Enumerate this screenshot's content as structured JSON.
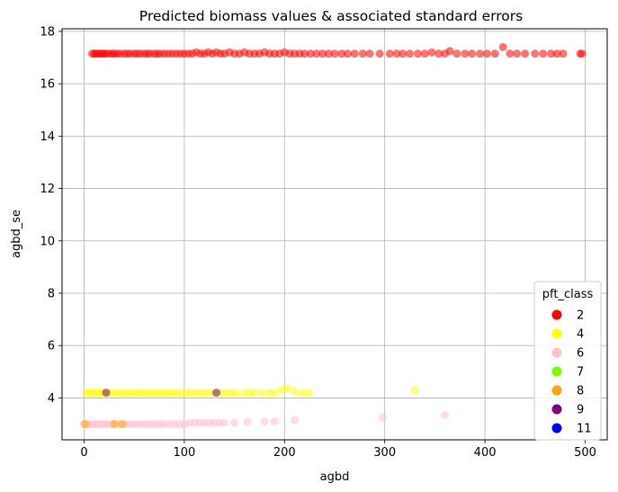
{
  "chart_data": {
    "type": "scatter",
    "title": "Predicted biomass values & associated standard errors",
    "xlabel": "agbd",
    "ylabel": "agbd_se",
    "xlim": [
      -22,
      522
    ],
    "ylim": [
      2.4,
      18.1
    ],
    "xticks": [
      0,
      100,
      200,
      300,
      400,
      500
    ],
    "yticks": [
      4,
      6,
      8,
      10,
      12,
      14,
      16,
      18
    ],
    "grid": true,
    "legend": {
      "title": "pft_class",
      "placement": "lower right",
      "entries": [
        {
          "label": "2",
          "color": "#ff0000"
        },
        {
          "label": "4",
          "color": "#ffff00"
        },
        {
          "label": "6",
          "color": "#ffc0cb"
        },
        {
          "label": "7",
          "color": "#7cfc00"
        },
        {
          "label": "8",
          "color": "#ffa500"
        },
        {
          "label": "9",
          "color": "#800080"
        },
        {
          "label": "11",
          "color": "#0000ff"
        }
      ]
    },
    "series": [
      {
        "name": "2",
        "color": "#ff0000",
        "points": [
          [
            8,
            17.15
          ],
          [
            10,
            17.15
          ],
          [
            12,
            17.15
          ],
          [
            14,
            17.15
          ],
          [
            16,
            17.15
          ],
          [
            18,
            17.15
          ],
          [
            20,
            17.15
          ],
          [
            22,
            17.15
          ],
          [
            25,
            17.15
          ],
          [
            28,
            17.15
          ],
          [
            30,
            17.15
          ],
          [
            33,
            17.15
          ],
          [
            36,
            17.15
          ],
          [
            40,
            17.15
          ],
          [
            43,
            17.15
          ],
          [
            46,
            17.15
          ],
          [
            50,
            17.15
          ],
          [
            53,
            17.15
          ],
          [
            56,
            17.15
          ],
          [
            60,
            17.15
          ],
          [
            63,
            17.15
          ],
          [
            66,
            17.15
          ],
          [
            70,
            17.15
          ],
          [
            73,
            17.15
          ],
          [
            76,
            17.15
          ],
          [
            80,
            17.15
          ],
          [
            84,
            17.15
          ],
          [
            88,
            17.15
          ],
          [
            92,
            17.15
          ],
          [
            96,
            17.15
          ],
          [
            100,
            17.15
          ],
          [
            104,
            17.15
          ],
          [
            108,
            17.15
          ],
          [
            112,
            17.2
          ],
          [
            116,
            17.15
          ],
          [
            120,
            17.15
          ],
          [
            124,
            17.2
          ],
          [
            128,
            17.15
          ],
          [
            132,
            17.2
          ],
          [
            136,
            17.15
          ],
          [
            140,
            17.15
          ],
          [
            145,
            17.2
          ],
          [
            150,
            17.15
          ],
          [
            155,
            17.15
          ],
          [
            160,
            17.2
          ],
          [
            165,
            17.15
          ],
          [
            170,
            17.15
          ],
          [
            175,
            17.15
          ],
          [
            180,
            17.2
          ],
          [
            185,
            17.15
          ],
          [
            190,
            17.15
          ],
          [
            195,
            17.15
          ],
          [
            200,
            17.2
          ],
          [
            205,
            17.15
          ],
          [
            210,
            17.15
          ],
          [
            215,
            17.15
          ],
          [
            220,
            17.15
          ],
          [
            226,
            17.15
          ],
          [
            232,
            17.15
          ],
          [
            238,
            17.15
          ],
          [
            244,
            17.15
          ],
          [
            250,
            17.15
          ],
          [
            257,
            17.15
          ],
          [
            263,
            17.15
          ],
          [
            270,
            17.15
          ],
          [
            278,
            17.15
          ],
          [
            285,
            17.15
          ],
          [
            295,
            17.15
          ],
          [
            305,
            17.15
          ],
          [
            312,
            17.15
          ],
          [
            318,
            17.15
          ],
          [
            325,
            17.15
          ],
          [
            333,
            17.15
          ],
          [
            340,
            17.15
          ],
          [
            347,
            17.2
          ],
          [
            354,
            17.15
          ],
          [
            360,
            17.15
          ],
          [
            365,
            17.25
          ],
          [
            372,
            17.15
          ],
          [
            380,
            17.15
          ],
          [
            387,
            17.15
          ],
          [
            395,
            17.15
          ],
          [
            402,
            17.15
          ],
          [
            410,
            17.15
          ],
          [
            418,
            17.4
          ],
          [
            425,
            17.15
          ],
          [
            432,
            17.15
          ],
          [
            440,
            17.15
          ],
          [
            450,
            17.15
          ],
          [
            458,
            17.15
          ],
          [
            466,
            17.15
          ],
          [
            472,
            17.15
          ],
          [
            478,
            17.15
          ],
          [
            495,
            17.15
          ],
          [
            497,
            17.15
          ]
        ]
      },
      {
        "name": "4",
        "color": "#ffff00",
        "points": [
          [
            2,
            4.2
          ],
          [
            5,
            4.2
          ],
          [
            8,
            4.2
          ],
          [
            11,
            4.2
          ],
          [
            14,
            4.2
          ],
          [
            17,
            4.2
          ],
          [
            20,
            4.2
          ],
          [
            24,
            4.2
          ],
          [
            28,
            4.2
          ],
          [
            32,
            4.2
          ],
          [
            36,
            4.2
          ],
          [
            40,
            4.2
          ],
          [
            44,
            4.2
          ],
          [
            48,
            4.2
          ],
          [
            52,
            4.2
          ],
          [
            56,
            4.2
          ],
          [
            60,
            4.2
          ],
          [
            64,
            4.2
          ],
          [
            68,
            4.2
          ],
          [
            72,
            4.2
          ],
          [
            76,
            4.2
          ],
          [
            80,
            4.2
          ],
          [
            84,
            4.2
          ],
          [
            88,
            4.2
          ],
          [
            92,
            4.2
          ],
          [
            97,
            4.2
          ],
          [
            102,
            4.2
          ],
          [
            107,
            4.2
          ],
          [
            112,
            4.2
          ],
          [
            117,
            4.2
          ],
          [
            122,
            4.2
          ],
          [
            127,
            4.2
          ],
          [
            132,
            4.2
          ],
          [
            137,
            4.2
          ],
          [
            142,
            4.2
          ],
          [
            147,
            4.2
          ],
          [
            152,
            4.2
          ],
          [
            160,
            4.2
          ],
          [
            165,
            4.2
          ],
          [
            170,
            4.2
          ],
          [
            178,
            4.2
          ],
          [
            185,
            4.2
          ],
          [
            190,
            4.2
          ],
          [
            197,
            4.3
          ],
          [
            203,
            4.35
          ],
          [
            210,
            4.25
          ],
          [
            218,
            4.2
          ],
          [
            224,
            4.2
          ],
          [
            330,
            4.3
          ]
        ]
      },
      {
        "name": "6",
        "color": "#ffc0cb",
        "points": [
          [
            0,
            3.0
          ],
          [
            3,
            3.0
          ],
          [
            6,
            3.0
          ],
          [
            9,
            3.0
          ],
          [
            12,
            3.0
          ],
          [
            15,
            3.0
          ],
          [
            18,
            3.0
          ],
          [
            21,
            3.0
          ],
          [
            24,
            3.0
          ],
          [
            28,
            3.0
          ],
          [
            32,
            3.0
          ],
          [
            36,
            3.0
          ],
          [
            40,
            3.0
          ],
          [
            44,
            3.0
          ],
          [
            48,
            3.0
          ],
          [
            52,
            3.0
          ],
          [
            56,
            3.0
          ],
          [
            60,
            3.0
          ],
          [
            64,
            3.0
          ],
          [
            68,
            3.0
          ],
          [
            72,
            3.0
          ],
          [
            76,
            3.0
          ],
          [
            80,
            3.0
          ],
          [
            85,
            3.0
          ],
          [
            90,
            3.0
          ],
          [
            95,
            3.0
          ],
          [
            100,
            3.0
          ],
          [
            105,
            3.05
          ],
          [
            110,
            3.05
          ],
          [
            115,
            3.05
          ],
          [
            120,
            3.05
          ],
          [
            125,
            3.05
          ],
          [
            130,
            3.05
          ],
          [
            135,
            3.05
          ],
          [
            140,
            3.05
          ],
          [
            150,
            3.05
          ],
          [
            163,
            3.1
          ],
          [
            180,
            3.1
          ],
          [
            190,
            3.1
          ],
          [
            210,
            3.15
          ],
          [
            298,
            3.25
          ],
          [
            360,
            3.35
          ]
        ]
      },
      {
        "name": "7",
        "color": "#7cfc00",
        "points": []
      },
      {
        "name": "8",
        "color": "#ffa500",
        "points": [
          [
            1,
            3.0
          ],
          [
            30,
            3.0
          ],
          [
            38,
            3.0
          ]
        ]
      },
      {
        "name": "9",
        "color": "#800080",
        "points": [
          [
            22,
            4.2
          ],
          [
            132,
            4.2
          ]
        ]
      },
      {
        "name": "11",
        "color": "#0000ff",
        "points": []
      }
    ]
  }
}
